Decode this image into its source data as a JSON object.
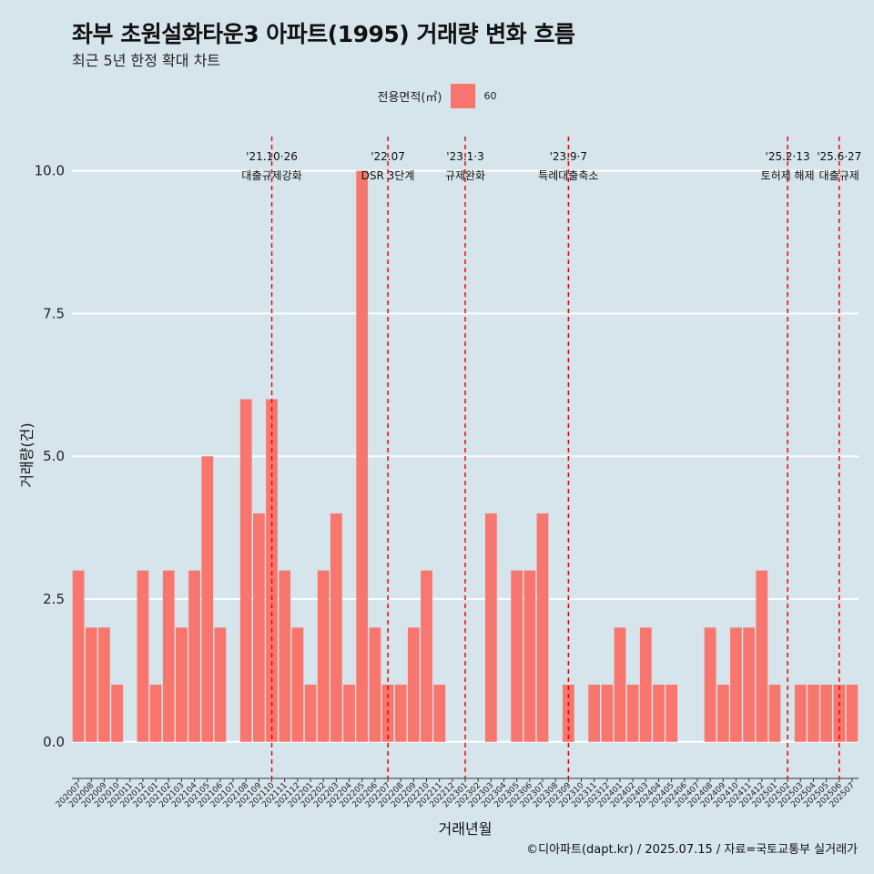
{
  "chart_data": {
    "type": "bar",
    "title": "좌부 초원설화타운3 아파트(1995) 거래량 변화 흐름",
    "subtitle": "최근 5년 한정 확대 차트",
    "xlabel": "거래년월",
    "ylabel": "거래량(건)",
    "legend": {
      "title": "전용면적(㎡)",
      "entries": [
        "60"
      ],
      "position": "top-center"
    },
    "caption": "©디아파트(dapt.kr) / 2025.07.15 / 자료=국토교통부 실거래가",
    "colors": {
      "bar": "#f8766d",
      "background": "#d6e4eb",
      "grid": "#ffffff",
      "annotation_line": "#ff0000"
    },
    "ylim": [
      -0.45,
      10.6
    ],
    "yticks": [
      0.0,
      2.5,
      5.0,
      7.5,
      10.0
    ],
    "ytick_labels": [
      "0.0",
      "2.5",
      "5.0",
      "7.5",
      "10.0"
    ],
    "grid": true,
    "categories": [
      "202007",
      "202008",
      "202009",
      "202010",
      "202011",
      "202012",
      "202101",
      "202102",
      "202103",
      "202104",
      "202105",
      "202106",
      "202107",
      "202108",
      "202109",
      "202110",
      "202111",
      "202112",
      "202201",
      "202202",
      "202203",
      "202204",
      "202205",
      "202206",
      "202207",
      "202208",
      "202209",
      "202210",
      "202211",
      "202212",
      "202301",
      "202302",
      "202303",
      "202304",
      "202305",
      "202306",
      "202307",
      "202308",
      "202309",
      "202310",
      "202311",
      "202312",
      "202401",
      "202402",
      "202403",
      "202404",
      "202405",
      "202406",
      "202407",
      "202408",
      "202409",
      "202410",
      "202411",
      "202412",
      "202501",
      "202502",
      "202503",
      "202504",
      "202505",
      "202506",
      "202507"
    ],
    "series": [
      {
        "name": "60",
        "values": [
          3,
          2,
          2,
          1,
          0,
          3,
          1,
          3,
          2,
          3,
          5,
          2,
          0,
          6,
          4,
          6,
          3,
          2,
          1,
          3,
          4,
          1,
          10,
          2,
          1,
          1,
          2,
          3,
          1,
          0,
          0,
          0,
          4,
          0,
          3,
          3,
          4,
          0,
          1,
          0,
          1,
          1,
          2,
          1,
          2,
          1,
          1,
          0,
          0,
          2,
          1,
          2,
          2,
          3,
          1,
          0,
          1,
          1,
          1,
          1,
          1
        ]
      }
    ],
    "annotations": [
      {
        "at": "202110",
        "date": "'21.10·26",
        "label": "대출규제강화"
      },
      {
        "at": "202207",
        "date": "'22.07",
        "label": "DSR 3단계"
      },
      {
        "at": "202301",
        "date": "'23.1·3",
        "label": "규제완화"
      },
      {
        "at": "202309",
        "date": "'23.9·7",
        "label": "특례대출축소"
      },
      {
        "at": "202502",
        "date": "'25.2·13",
        "label": "토허제 해제"
      },
      {
        "at": "202506",
        "date": "'25.6·27",
        "label": "대출규제"
      }
    ]
  }
}
